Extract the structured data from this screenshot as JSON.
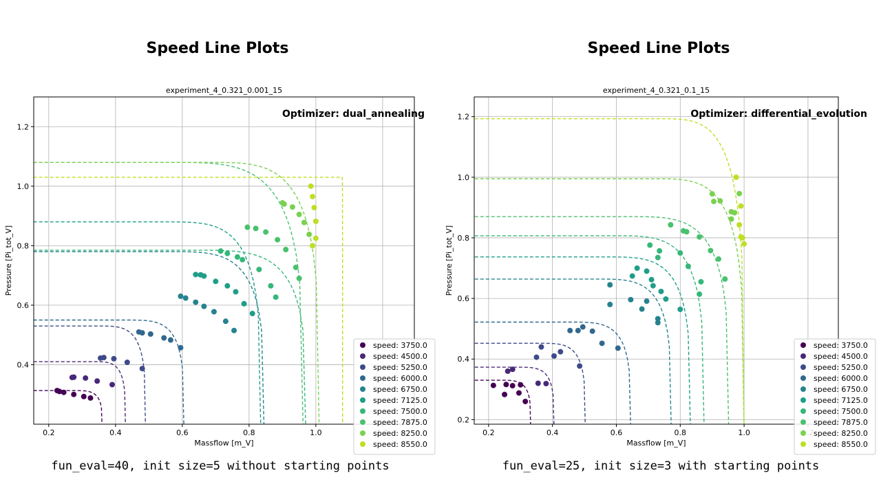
{
  "left": {
    "heading": "Speed Line Plots",
    "caption": "fun_eval=40, init size=5 without starting points"
  },
  "right": {
    "heading": "Speed Line Plots",
    "caption": "fun_eval=25, init size=3 with starting points"
  },
  "chart_data": [
    {
      "type": "scatter",
      "title": "experiment_4_0.321_0.001_15",
      "annotation": "Optimizer: dual_annealing",
      "xlabel": "Massflow [m_V]",
      "ylabel": "Pressure [Pi_tot_V]",
      "xlim": [
        0.155,
        1.295
      ],
      "ylim": [
        0.2,
        1.3
      ],
      "xticks": [
        0.2,
        0.4,
        0.6,
        0.8,
        1.0,
        1.2
      ],
      "yticks": [
        0.4,
        0.6,
        0.8,
        1.0,
        1.2
      ],
      "grid": true,
      "legend_position": "lower-right",
      "series": [
        {
          "name": "speed: 3750.0",
          "color": "#440154",
          "curve": {
            "choke": 0.36,
            "pmax": 0.313,
            "knee": 0.09
          },
          "points": [
            [
              0.225,
              0.313
            ],
            [
              0.232,
              0.31
            ],
            [
              0.245,
              0.307
            ],
            [
              0.275,
              0.3
            ],
            [
              0.305,
              0.293
            ],
            [
              0.325,
              0.288
            ]
          ]
        },
        {
          "name": "speed: 4500.0",
          "color": "#482878",
          "curve": {
            "choke": 0.43,
            "pmax": 0.41,
            "knee": 0.1
          },
          "points": [
            [
              0.27,
              0.357
            ],
            [
              0.275,
              0.358
            ],
            [
              0.31,
              0.355
            ],
            [
              0.345,
              0.345
            ],
            [
              0.39,
              0.333
            ]
          ]
        },
        {
          "name": "speed: 5250.0",
          "color": "#3e4a89",
          "curve": {
            "choke": 0.49,
            "pmax": 0.53,
            "knee": 0.15
          },
          "points": [
            [
              0.355,
              0.422
            ],
            [
              0.365,
              0.424
            ],
            [
              0.395,
              0.42
            ],
            [
              0.435,
              0.408
            ],
            [
              0.48,
              0.387
            ]
          ]
        },
        {
          "name": "speed: 6000.0",
          "color": "#31688e",
          "curve": {
            "choke": 0.605,
            "pmax": 0.55,
            "knee": 0.18
          },
          "points": [
            [
              0.47,
              0.51
            ],
            [
              0.48,
              0.507
            ],
            [
              0.505,
              0.503
            ],
            [
              0.545,
              0.49
            ],
            [
              0.565,
              0.483
            ],
            [
              0.595,
              0.457
            ]
          ]
        },
        {
          "name": "speed: 6750.0",
          "color": "#26828e",
          "curve": {
            "choke": 0.845,
            "pmax": 0.78,
            "knee": 0.3
          },
          "points": [
            [
              0.595,
              0.63
            ],
            [
              0.61,
              0.624
            ],
            [
              0.64,
              0.61
            ],
            [
              0.665,
              0.596
            ],
            [
              0.695,
              0.578
            ],
            [
              0.73,
              0.546
            ],
            [
              0.755,
              0.515
            ]
          ]
        },
        {
          "name": "speed: 7125.0",
          "color": "#1f9e89",
          "curve": {
            "choke": 0.835,
            "pmax": 0.88,
            "knee": 0.3
          },
          "points": [
            [
              0.64,
              0.703
            ],
            [
              0.655,
              0.702
            ],
            [
              0.665,
              0.698
            ],
            [
              0.7,
              0.68
            ],
            [
              0.735,
              0.665
            ],
            [
              0.76,
              0.645
            ],
            [
              0.785,
              0.605
            ],
            [
              0.81,
              0.572
            ]
          ]
        },
        {
          "name": "speed: 7500.0",
          "color": "#35b779",
          "curve": {
            "choke": 0.97,
            "pmax": 0.785,
            "knee": 0.35
          },
          "points": [
            [
              0.715,
              0.782
            ],
            [
              0.735,
              0.774
            ],
            [
              0.765,
              0.762
            ],
            [
              0.78,
              0.753
            ],
            [
              0.83,
              0.72
            ],
            [
              0.865,
              0.665
            ],
            [
              0.88,
              0.627
            ]
          ]
        },
        {
          "name": "speed: 7875.0",
          "color": "#4ac16d",
          "curve": {
            "choke": 0.962,
            "pmax": 1.08,
            "knee": 0.42
          },
          "points": [
            [
              0.795,
              0.862
            ],
            [
              0.82,
              0.858
            ],
            [
              0.85,
              0.846
            ],
            [
              0.885,
              0.82
            ],
            [
              0.91,
              0.787
            ],
            [
              0.94,
              0.727
            ],
            [
              0.95,
              0.69
            ]
          ]
        },
        {
          "name": "speed: 8250.0",
          "color": "#7ad151",
          "curve": {
            "choke": 1.01,
            "pmax": 1.08,
            "knee": 0.35
          },
          "points": [
            [
              0.9,
              0.944
            ],
            [
              0.905,
              0.94
            ],
            [
              0.93,
              0.93
            ],
            [
              0.95,
              0.905
            ],
            [
              0.965,
              0.878
            ],
            [
              0.98,
              0.838
            ]
          ]
        },
        {
          "name": "speed: 8550.0",
          "color": "#bddf26",
          "curve": {
            "choke": 1.08,
            "pmax": 1.03,
            "knee": 0.001
          },
          "points": [
            [
              0.985,
              1.0
            ],
            [
              0.99,
              0.965
            ],
            [
              0.995,
              0.928
            ],
            [
              1.0,
              0.882
            ],
            [
              1.0,
              0.825
            ],
            [
              0.99,
              0.8
            ]
          ]
        }
      ]
    },
    {
      "type": "scatter",
      "title": "experiment_4_0.321_0.1_15",
      "annotation": "Optimizer: differential_evolution",
      "xlabel": "Massflow [m_V]",
      "ylabel": "Pressure [Pi_tot_V]",
      "xlim": [
        0.155,
        1.295
      ],
      "ylim": [
        0.185,
        1.265
      ],
      "xticks": [
        0.2,
        0.4,
        0.6,
        0.8,
        1.0,
        1.2
      ],
      "yticks": [
        0.2,
        0.4,
        0.6,
        0.8,
        1.0,
        1.2
      ],
      "grid": true,
      "legend_position": "lower-right",
      "series": [
        {
          "name": "speed: 3750.0",
          "color": "#440154",
          "curve": {
            "choke": 0.332,
            "pmax": 0.33,
            "knee": 0.1
          },
          "points": [
            [
              0.215,
              0.313
            ],
            [
              0.25,
              0.283
            ],
            [
              0.255,
              0.316
            ],
            [
              0.275,
              0.312
            ],
            [
              0.295,
              0.288
            ],
            [
              0.3,
              0.315
            ],
            [
              0.315,
              0.26
            ]
          ]
        },
        {
          "name": "speed: 4500.0",
          "color": "#482878",
          "curve": {
            "choke": 0.405,
            "pmax": 0.373,
            "knee": 0.12
          },
          "points": [
            [
              0.26,
              0.36
            ],
            [
              0.275,
              0.366
            ],
            [
              0.355,
              0.32
            ],
            [
              0.38,
              0.319
            ]
          ]
        },
        {
          "name": "speed: 5250.0",
          "color": "#3e4a89",
          "curve": {
            "choke": 0.503,
            "pmax": 0.452,
            "knee": 0.15
          },
          "points": [
            [
              0.35,
              0.406
            ],
            [
              0.365,
              0.44
            ],
            [
              0.405,
              0.41
            ],
            [
              0.425,
              0.424
            ],
            [
              0.485,
              0.377
            ]
          ]
        },
        {
          "name": "speed: 6000.0",
          "color": "#31688e",
          "curve": {
            "choke": 0.645,
            "pmax": 0.522,
            "knee": 0.2
          },
          "points": [
            [
              0.455,
              0.494
            ],
            [
              0.48,
              0.494
            ],
            [
              0.495,
              0.506
            ],
            [
              0.525,
              0.492
            ],
            [
              0.555,
              0.452
            ],
            [
              0.605,
              0.436
            ]
          ]
        },
        {
          "name": "speed: 6750.0",
          "color": "#26828e",
          "curve": {
            "choke": 0.772,
            "pmax": 0.664,
            "knee": 0.25
          },
          "points": [
            [
              0.58,
              0.645
            ],
            [
              0.58,
              0.58
            ],
            [
              0.645,
              0.596
            ],
            [
              0.68,
              0.565
            ],
            [
              0.695,
              0.591
            ],
            [
              0.73,
              0.52
            ],
            [
              0.73,
              0.533
            ]
          ]
        },
        {
          "name": "speed: 7125.0",
          "color": "#1f9e89",
          "curve": {
            "choke": 0.832,
            "pmax": 0.737,
            "knee": 0.28
          },
          "points": [
            [
              0.65,
              0.674
            ],
            [
              0.665,
              0.7
            ],
            [
              0.695,
              0.69
            ],
            [
              0.71,
              0.662
            ],
            [
              0.715,
              0.642
            ],
            [
              0.74,
              0.623
            ],
            [
              0.755,
              0.598
            ],
            [
              0.8,
              0.564
            ]
          ]
        },
        {
          "name": "speed: 7500.0",
          "color": "#35b779",
          "curve": {
            "choke": 0.875,
            "pmax": 0.807,
            "knee": 0.3
          },
          "points": [
            [
              0.705,
              0.776
            ],
            [
              0.73,
              0.735
            ],
            [
              0.735,
              0.757
            ],
            [
              0.8,
              0.75
            ],
            [
              0.825,
              0.706
            ],
            [
              0.86,
              0.614
            ],
            [
              0.865,
              0.655
            ]
          ]
        },
        {
          "name": "speed: 7875.0",
          "color": "#4ac16d",
          "curve": {
            "choke": 0.952,
            "pmax": 0.87,
            "knee": 0.33
          },
          "points": [
            [
              0.77,
              0.843
            ],
            [
              0.81,
              0.823
            ],
            [
              0.82,
              0.82
            ],
            [
              0.86,
              0.803
            ],
            [
              0.895,
              0.758
            ],
            [
              0.92,
              0.73
            ],
            [
              0.94,
              0.664
            ]
          ]
        },
        {
          "name": "speed: 8250.0",
          "color": "#7ad151",
          "curve": {
            "choke": 1.0,
            "pmax": 0.995,
            "knee": 0.3
          },
          "points": [
            [
              0.9,
              0.945
            ],
            [
              0.905,
              0.92
            ],
            [
              0.925,
              0.922
            ],
            [
              0.96,
              0.886
            ],
            [
              0.96,
              0.862
            ],
            [
              0.97,
              0.883
            ],
            [
              0.985,
              0.946
            ]
          ]
        },
        {
          "name": "speed: 8550.0",
          "color": "#bddf26",
          "curve": {
            "choke": 1.0,
            "pmax": 1.193,
            "knee": 0.28
          },
          "points": [
            [
              0.975,
              1.0
            ],
            [
              0.99,
              0.905
            ],
            [
              0.985,
              0.843
            ],
            [
              0.99,
              0.803
            ],
            [
              0.995,
              0.8
            ],
            [
              1.0,
              0.78
            ]
          ]
        }
      ]
    }
  ]
}
